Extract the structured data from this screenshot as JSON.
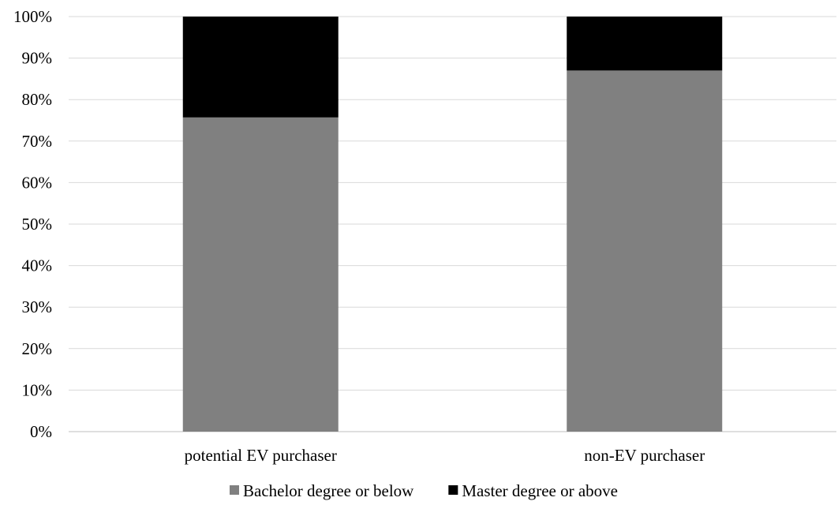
{
  "chart_data": {
    "type": "bar",
    "stacked": true,
    "orientation": "vertical",
    "title": "",
    "xlabel": "",
    "ylabel": "",
    "categories": [
      "potential EV purchaser",
      "non-EV purchaser"
    ],
    "series": [
      {
        "name": "Bachelor degree or below",
        "values": [
          75.7,
          87.0
        ],
        "color": "#808080"
      },
      {
        "name": "Master degree or above",
        "values": [
          24.3,
          13.0
        ],
        "color": "#000000"
      }
    ],
    "ylim": [
      0,
      100
    ],
    "yticks": [
      0,
      10,
      20,
      30,
      40,
      50,
      60,
      70,
      80,
      90,
      100
    ],
    "ytick_labels": [
      "0%",
      "10%",
      "20%",
      "30%",
      "40%",
      "50%",
      "60%",
      "70%",
      "80%",
      "90%",
      "100%"
    ],
    "grid": true,
    "gridline_color": "#d9d9d9",
    "legend_position": "bottom"
  }
}
